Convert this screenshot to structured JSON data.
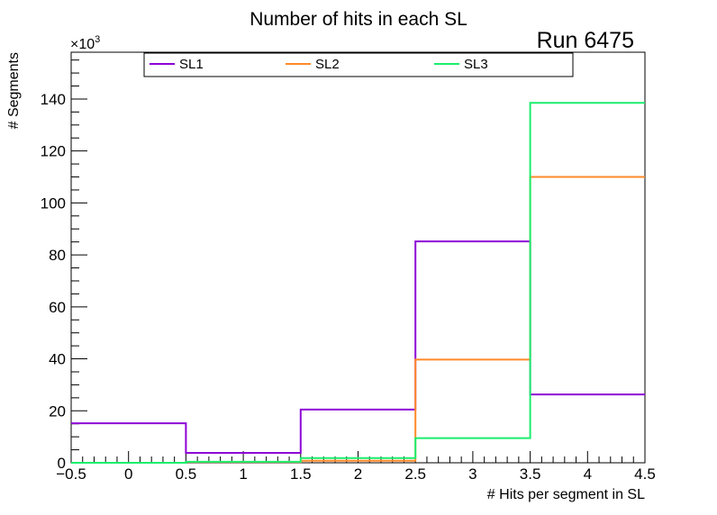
{
  "chart_data": {
    "type": "histogram-step",
    "title": "Number of hits in each SL",
    "run_label": "Run 6475",
    "xlabel": "# Hits per segment in SL",
    "ylabel": "# Segments",
    "y_multiplier": "×10",
    "y_multiplier_exp": "3",
    "xlim": [
      -0.5,
      4.5
    ],
    "ylim": [
      0,
      158
    ],
    "x_ticks": [
      -0.5,
      0,
      0.5,
      1,
      1.5,
      2,
      2.5,
      3,
      3.5,
      4,
      4.5
    ],
    "x_tick_labels": [
      "−0.5",
      "0",
      "0.5",
      "1",
      "1.5",
      "2",
      "2.5",
      "3",
      "3.5",
      "4",
      "4.5"
    ],
    "y_ticks": [
      0,
      20,
      40,
      60,
      80,
      100,
      120,
      140
    ],
    "y_tick_labels": [
      "0",
      "20",
      "40",
      "60",
      "80",
      "100",
      "120",
      "140"
    ],
    "bin_edges": [
      -0.5,
      0.5,
      1.5,
      2.5,
      3.5,
      4.5
    ],
    "series": [
      {
        "name": "SL1",
        "color": "#8e00d6",
        "values": [
          15.2,
          3.8,
          20.5,
          85.2,
          26.3
        ]
      },
      {
        "name": "SL2",
        "color": "#ff8a2a",
        "values": [
          0.0,
          0.3,
          0.8,
          39.7,
          110.0
        ]
      },
      {
        "name": "SL3",
        "color": "#1aee6c",
        "values": [
          0.0,
          0.4,
          1.8,
          9.5,
          138.5
        ]
      }
    ],
    "legend_position": "top"
  }
}
